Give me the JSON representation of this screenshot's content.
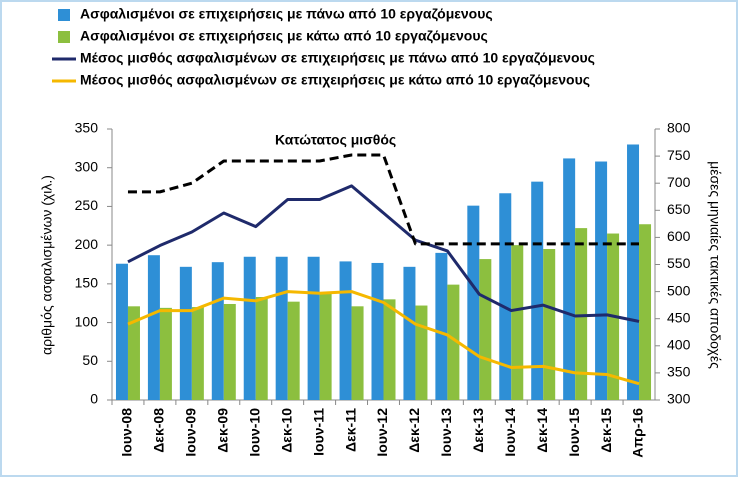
{
  "chart_data": {
    "type": "bar_line",
    "categories": [
      "Ιουν-08",
      "Δεκ-08",
      "Ιουν-09",
      "Δεκ-09",
      "Ιουν-10",
      "Δεκ-10",
      "Ιουν-11",
      "Δεκ-11",
      "Ιουν-12",
      "Δεκ-12",
      "Ιουν-13",
      "Δεκ-13",
      "Ιουν-14",
      "Δεκ-14",
      "Ιουν-15",
      "Δεκ-15",
      "Απρ-16"
    ],
    "series": [
      {
        "name": "Ασφαλισμένοι σε επιχειρήσεις με πάνω από 10 εργαζόμενους",
        "kind": "bar",
        "color": "#2e8fd6",
        "axis": "y",
        "values": [
          176,
          187,
          172,
          178,
          185,
          185,
          185,
          179,
          177,
          172,
          190,
          251,
          267,
          282,
          312,
          308,
          330
        ]
      },
      {
        "name": "Ασφαλισμένοι σε επιχειρήσεις με κάτω από 10 εργαζόμενους",
        "kind": "bar",
        "color": "#8cbf3f",
        "axis": "y",
        "values": [
          121,
          119,
          120,
          124,
          133,
          127,
          139,
          121,
          130,
          122,
          149,
          182,
          200,
          195,
          222,
          215,
          227
        ]
      },
      {
        "name": "Μέσος μισθός ασφαλισμένων σε επιχειρήσεις με πάνω από 10 εργαζόμενους",
        "kind": "line",
        "color": "#1f2a6b",
        "axis": "y2",
        "values": [
          555,
          585,
          610,
          645,
          620,
          670,
          670,
          695,
          645,
          595,
          575,
          495,
          465,
          475,
          455,
          457,
          445
        ]
      },
      {
        "name": "Μέσος μισθός ασφαλισμένων σε επιχειρήσεις με κάτω από 10 εργαζόμενους",
        "kind": "line",
        "color": "#f5b800",
        "axis": "y2",
        "values": [
          440,
          465,
          465,
          488,
          483,
          500,
          497,
          500,
          480,
          440,
          420,
          380,
          360,
          362,
          350,
          347,
          330
        ]
      }
    ],
    "reference_line": {
      "name": "Κατώτατος μισθός",
      "color": "#000000",
      "axis": "y2",
      "style": "dashed",
      "values": [
        684,
        684,
        700,
        741,
        741,
        741,
        741,
        752,
        752,
        588,
        588,
        588,
        588,
        588,
        588,
        588,
        588
      ]
    },
    "ylabel": "αριθμός ασφαλισμένων (χιλ.)",
    "y2label": "μέσες μηνιαίες τακτικές αποδοχές",
    "ylim": [
      0,
      350
    ],
    "yticks": [
      0,
      50,
      100,
      150,
      200,
      250,
      300,
      350
    ],
    "y2lim": [
      300,
      800
    ],
    "y2ticks": [
      300,
      350,
      400,
      450,
      500,
      550,
      600,
      650,
      700,
      750,
      800
    ],
    "legend": "top"
  }
}
